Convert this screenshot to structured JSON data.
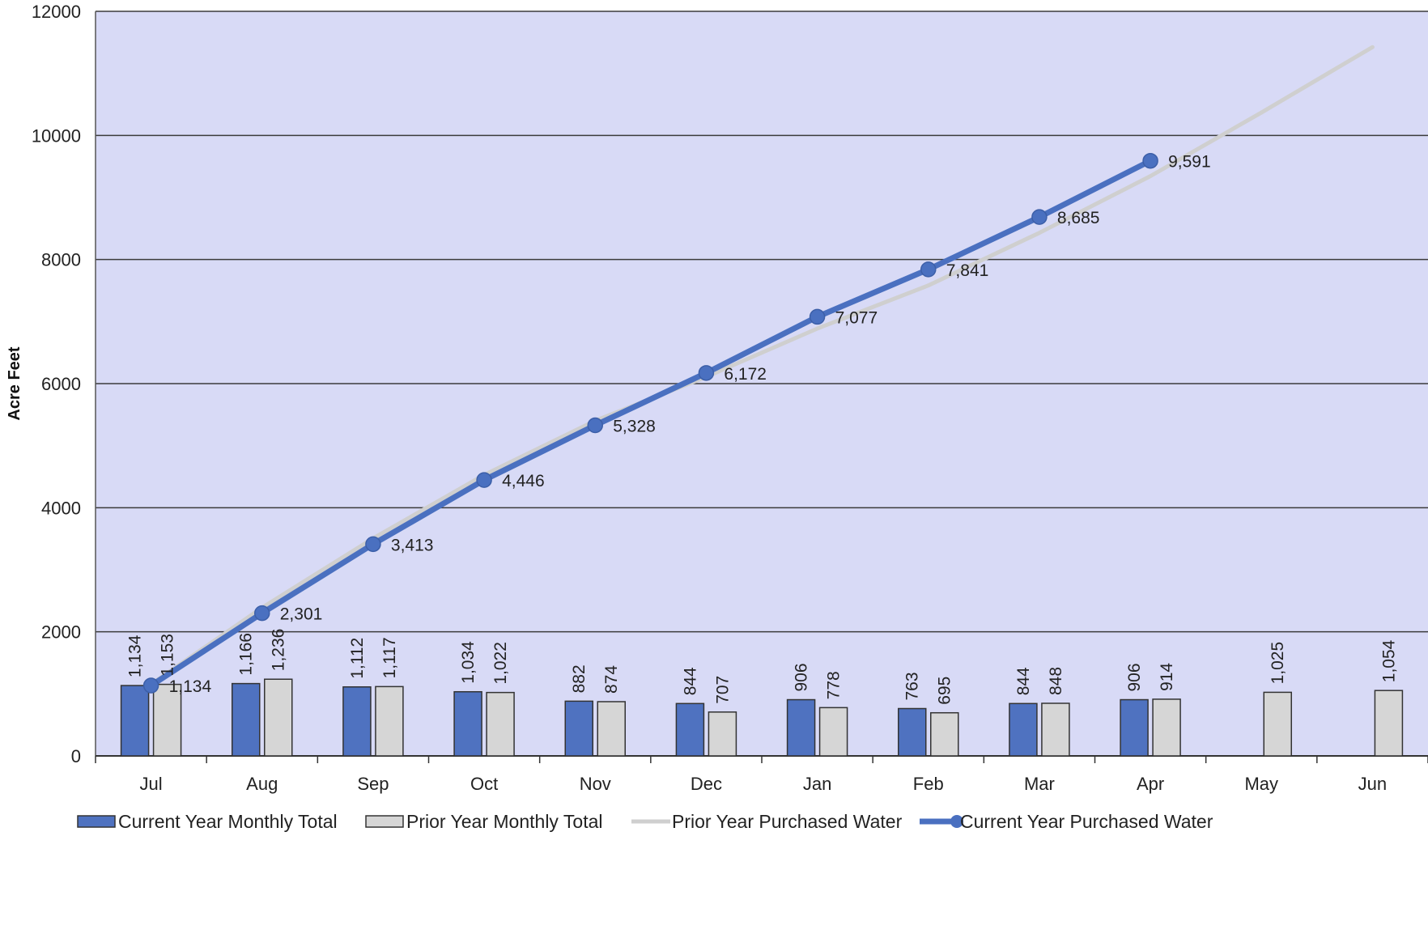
{
  "chart_data": {
    "type": "bar",
    "title": "",
    "xlabel": "",
    "ylabel": "Acre Feet",
    "ylim": [
      0,
      12000
    ],
    "yticks": [
      0,
      2000,
      4000,
      6000,
      8000,
      10000,
      12000
    ],
    "ytick_labels": [
      "0",
      "2000",
      "4000",
      "6000",
      "8000",
      "10000",
      "12000"
    ],
    "grid": true,
    "legend_position": "bottom",
    "categories": [
      "Jul",
      "Aug",
      "Sep",
      "Oct",
      "Nov",
      "Dec",
      "Jan",
      "Feb",
      "Mar",
      "Apr",
      "May",
      "Jun"
    ],
    "series": [
      {
        "name": "Current Year Monthly Total",
        "kind": "bar",
        "color": "#4f72c0",
        "values": [
          1134,
          1166,
          1112,
          1034,
          882,
          844,
          906,
          763,
          844,
          906,
          null,
          null
        ],
        "labels": [
          "1,134",
          "1,166",
          "1,112",
          "1,034",
          "882",
          "844",
          "906",
          "763",
          "844",
          "906",
          "",
          ""
        ]
      },
      {
        "name": "Prior Year Monthly Total",
        "kind": "bar",
        "color": "#d6d6d6",
        "values": [
          1153,
          1236,
          1117,
          1022,
          874,
          707,
          778,
          695,
          848,
          914,
          1025,
          1054
        ],
        "labels": [
          "1,153",
          "1,236",
          "1,117",
          "1,022",
          "874",
          "707",
          "778",
          "695",
          "848",
          "914",
          "1,025",
          "1,054"
        ]
      },
      {
        "name": "Prior Year Purchased Water",
        "kind": "line",
        "color": "#cfcfcf",
        "values": [
          1153,
          2389,
          3506,
          4528,
          5402,
          6109,
          6887,
          7582,
          8430,
          9344,
          10369,
          11423
        ]
      },
      {
        "name": "Current Year Purchased Water",
        "kind": "line",
        "color": "#4a70c0",
        "values": [
          1134,
          2301,
          3413,
          4446,
          5328,
          6172,
          7077,
          7841,
          8685,
          9591,
          null,
          null
        ],
        "labels": [
          "1,134",
          "2,301",
          "3,413",
          "4,446",
          "5,328",
          "6,172",
          "7,077",
          "7,841",
          "8,685",
          "9,591",
          "",
          ""
        ]
      }
    ]
  },
  "colors": {
    "plot_background": "#d8daf6",
    "gridline": "#3b3b3b",
    "current_bar": "#4f72c0",
    "prior_bar": "#d6d6d6",
    "current_line": "#4a70c0",
    "prior_line": "#cfcfcf"
  }
}
